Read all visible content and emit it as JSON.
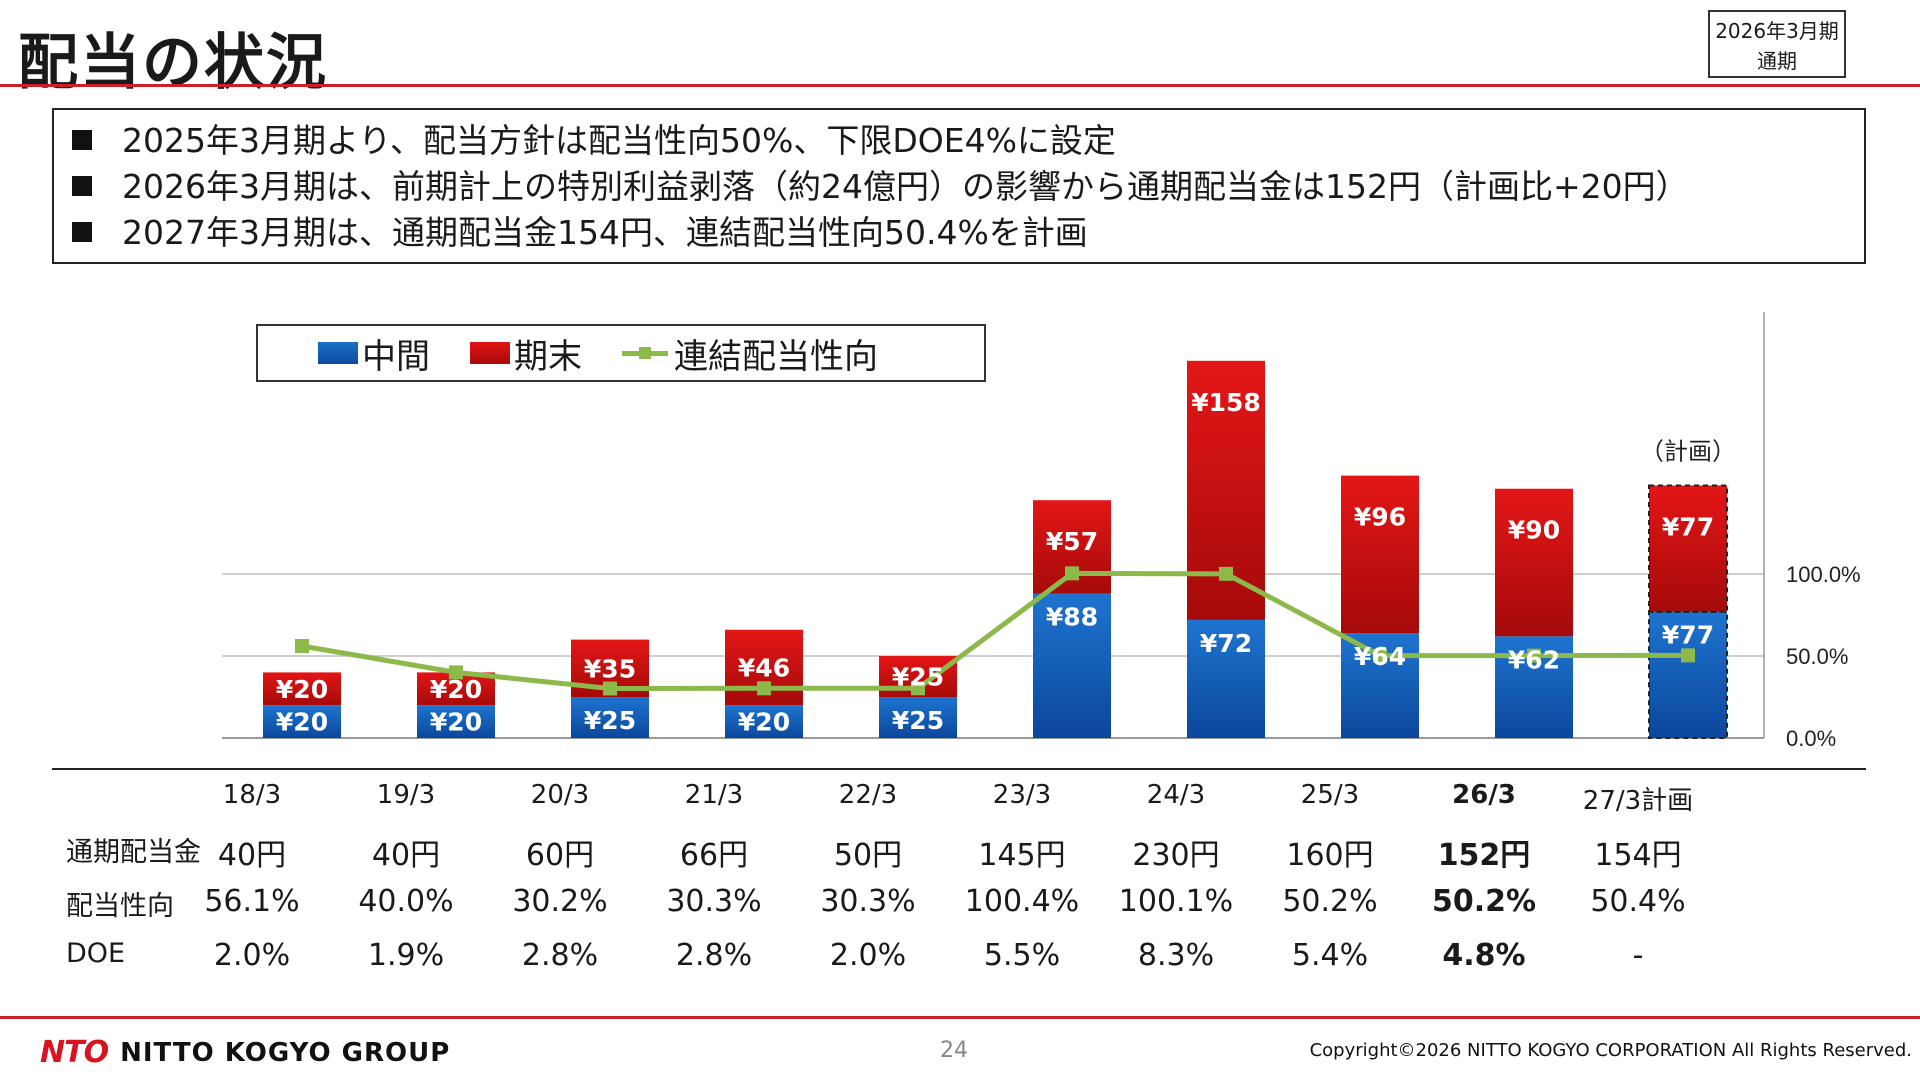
{
  "header": {
    "title": "配当の状況",
    "period_badge_line1": "2026年3月期",
    "period_badge_line2": "通期"
  },
  "summary": {
    "items": [
      "2025年3月期より、配当方針は配当性向50%、下限DOE4%に設定",
      "2026年3月期は、前期計上の特別利益剥落（約24億円）の影響から通期配当金は152円（計画比+20円）",
      "2027年3月期は、通期配当金154円、連結配当性向50.4%を計画"
    ]
  },
  "chart_data": {
    "type": "bar",
    "stacked": true,
    "categories": [
      "18/3",
      "19/3",
      "20/3",
      "21/3",
      "22/3",
      "23/3",
      "24/3",
      "25/3",
      "26/3",
      "27/3計画"
    ],
    "series": [
      {
        "name": "中間",
        "type": "bar",
        "color": "#1565c0",
        "values": [
          20,
          20,
          25,
          20,
          25,
          88,
          72,
          64,
          62,
          77
        ],
        "labels": [
          "¥20",
          "¥20",
          "¥25",
          "¥20",
          "¥25",
          "¥88",
          "¥72",
          "¥64",
          "¥62",
          "¥77"
        ]
      },
      {
        "name": "期末",
        "type": "bar",
        "color": "#c80e0e",
        "values": [
          20,
          20,
          35,
          46,
          25,
          57,
          158,
          96,
          90,
          77
        ],
        "labels": [
          "¥20",
          "¥20",
          "¥35",
          "¥46",
          "¥25",
          "¥57",
          "¥158",
          "¥96",
          "¥90",
          "¥77"
        ]
      },
      {
        "name": "連結配当性向",
        "type": "line",
        "axis": "right",
        "color": "#8db84a",
        "values": [
          56.1,
          40.0,
          30.2,
          30.3,
          30.3,
          100.4,
          100.1,
          50.2,
          50.2,
          50.4
        ]
      }
    ],
    "y_right_ticks": [
      "0.0%",
      "50.0%",
      "100.0%"
    ],
    "y_right_range": [
      0,
      133
    ],
    "y_left_range": [
      0,
      270
    ],
    "plan_category": "27/3計画",
    "plan_annotation": "（計画）",
    "legend_position": "top-left",
    "grid": true
  },
  "table": {
    "headers": [
      "18/3",
      "19/3",
      "20/3",
      "21/3",
      "22/3",
      "23/3",
      "24/3",
      "25/3",
      "26/3",
      "27/3計画"
    ],
    "highlight_index": 8,
    "rows": [
      {
        "label": "通期配当金",
        "values": [
          "40円",
          "40円",
          "60円",
          "66円",
          "50円",
          "145円",
          "230円",
          "160円",
          "152円",
          "154円"
        ]
      },
      {
        "label": "配当性向",
        "values": [
          "56.1%",
          "40.0%",
          "30.2%",
          "30.3%",
          "30.3%",
          "100.4%",
          "100.1%",
          "50.2%",
          "50.2%",
          "50.4%"
        ]
      },
      {
        "label": "DOE",
        "values": [
          "2.0%",
          "1.9%",
          "2.8%",
          "2.8%",
          "2.0%",
          "5.5%",
          "8.3%",
          "5.4%",
          "4.8%",
          "-"
        ]
      }
    ]
  },
  "footer": {
    "logo_mark": "NTO",
    "logo_text": "NITTO KOGYO GROUP",
    "page_number": "24",
    "copyright": "Copyright©2026 NITTO KOGYO CORPORATION All Rights Reserved."
  }
}
